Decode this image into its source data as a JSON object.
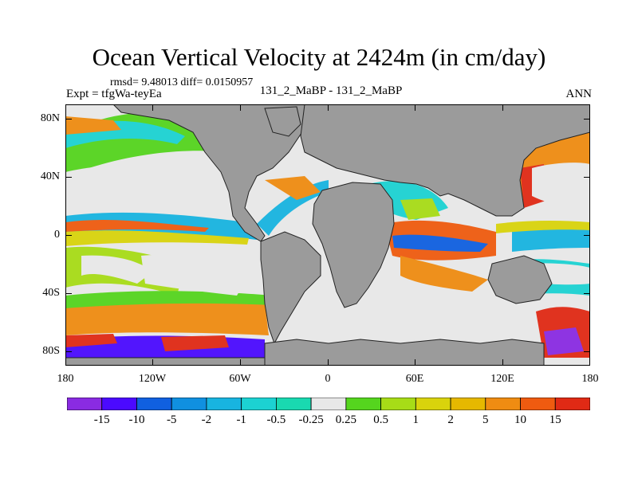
{
  "title": "Ocean Vertical Velocity at 2424m (in cm/day)",
  "stats": "rmsd= 9.48013 diff= 0.0150957",
  "experiment": "Expt = tfgWa-teyEa",
  "comparison": "131_2_MaBP - 131_2_MaBP",
  "season": "ANN",
  "land_color": "#9b9b9b",
  "y_ticks": [
    "80N",
    "40N",
    "0",
    "40S",
    "80S"
  ],
  "x_ticks": [
    "180",
    "120W",
    "60W",
    "0",
    "60E",
    "120E",
    "180"
  ],
  "colorbar": {
    "colors": [
      "#8a2be2",
      "#4b0aff",
      "#1060e0",
      "#1090e0",
      "#18b4e0",
      "#1cd2d2",
      "#19d9b0",
      "#e8e8e8",
      "#55d51e",
      "#a7dc17",
      "#d9d30c",
      "#e6b800",
      "#ef8c12",
      "#ef5b10",
      "#e02a15"
    ],
    "labels": [
      "-15",
      "-10",
      "-5",
      "-2",
      "-1",
      "-0.5",
      "-0.25",
      "0.25",
      "0.5",
      "1",
      "2",
      "5",
      "10",
      "15"
    ]
  }
}
